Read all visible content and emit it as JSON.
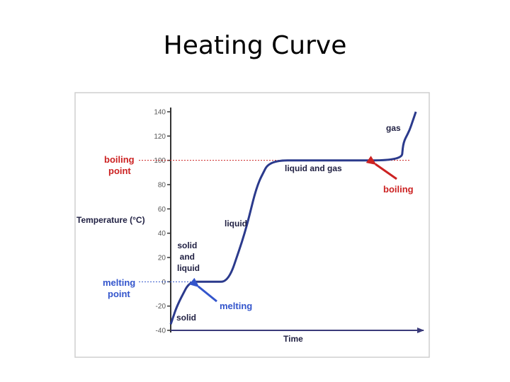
{
  "title": "Heating Curve",
  "colors": {
    "axis": "#333333",
    "curve": "#2b3a8c",
    "red": "#cc2222",
    "blue": "#3355cc",
    "text": "#222244"
  },
  "chart_data": {
    "type": "line",
    "xlabel": "Time",
    "ylabel": "Temperature (°C)",
    "ylim": [
      -40,
      140
    ],
    "y_ticks": [
      {
        "value": 140,
        "label": "140"
      },
      {
        "value": 120,
        "label": "120"
      },
      {
        "value": 100,
        "label": "100"
      },
      {
        "value": 80,
        "label": "80"
      },
      {
        "value": 60,
        "label": "60"
      },
      {
        "value": 40,
        "label": "40"
      },
      {
        "value": 20,
        "label": "20"
      },
      {
        "value": 0,
        "label": "0"
      },
      {
        "value": -20,
        "label": "-20"
      },
      {
        "value": -40,
        "label": "-40"
      }
    ],
    "x_axis_ticks": false,
    "series": [
      {
        "x": [
          0,
          3,
          9,
          18,
          28,
          36,
          42,
          48,
          73,
          112,
          113,
          116,
          118,
          119
        ],
        "y": [
          -35,
          -20,
          0,
          0,
          0,
          40,
          80,
          100,
          100,
          100,
          115,
          125,
          135,
          140
        ]
      }
    ],
    "reference_lines": [
      {
        "value": 100,
        "label_lines": [
          "boiling",
          "point"
        ]
      },
      {
        "value": 0,
        "label_lines": [
          "melting",
          "point"
        ]
      }
    ],
    "phase_labels": [
      {
        "text_lines": [
          "gas"
        ]
      },
      {
        "text_lines": [
          "liquid and gas"
        ]
      },
      {
        "text_lines": [
          "liquid"
        ]
      },
      {
        "text_lines": [
          "solid",
          "and",
          "liquid"
        ]
      },
      {
        "text_lines": [
          "solid"
        ]
      }
    ],
    "annotations": [
      {
        "text": "boiling"
      },
      {
        "text": "melting"
      }
    ]
  }
}
